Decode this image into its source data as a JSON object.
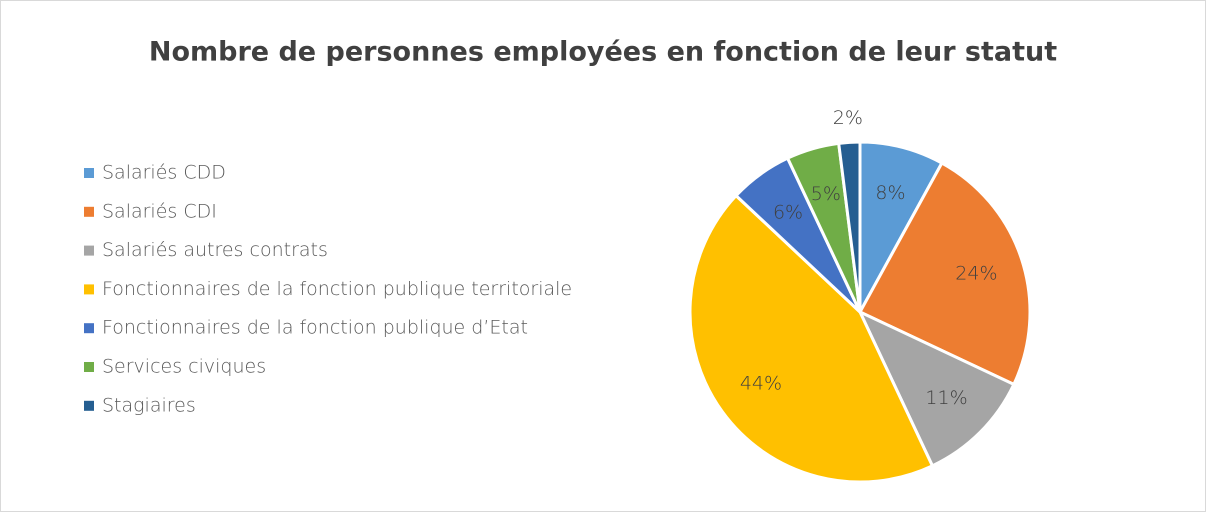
{
  "chart_data": {
    "type": "pie",
    "title": "Nombre de personnes employées en fonction de leur statut",
    "categories": [
      "Salariés CDD",
      "Salariés CDI",
      "Salariés autres contrats",
      "Fonctionnaires de la fonction publique territoriale",
      "Fonctionnaires de la fonction publique d’Etat",
      "Services civiques",
      "Stagiaires"
    ],
    "values": [
      8,
      24,
      11,
      44,
      6,
      5,
      2
    ],
    "value_labels": [
      "8%",
      "24%",
      "11%",
      "44%",
      "6%",
      "5%",
      "2%"
    ],
    "colors": [
      "#5b9bd5",
      "#ed7d31",
      "#a5a5a5",
      "#ffc000",
      "#4472c4",
      "#70ad47",
      "#255e91"
    ],
    "legend": "left"
  }
}
